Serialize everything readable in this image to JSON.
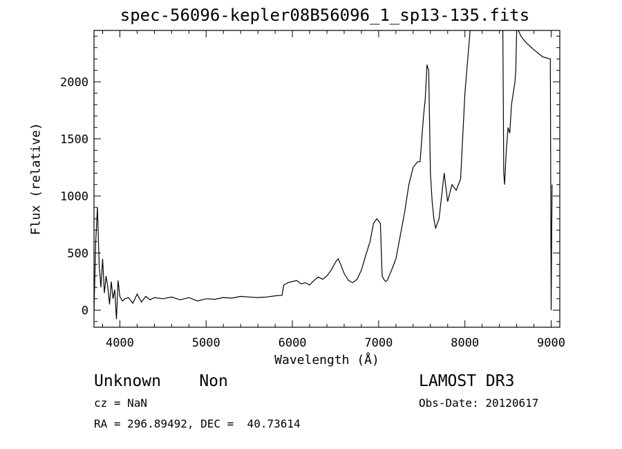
{
  "chart_data": {
    "type": "line",
    "title": "spec-56096-kepler08B56096_1_sp13-135.fits",
    "xlabel": "Wavelength (Å)",
    "ylabel": "Flux (relative)",
    "xlim": [
      3700,
      9100
    ],
    "ylim": [
      -150,
      2450
    ],
    "xticks": [
      4000,
      5000,
      6000,
      7000,
      8000,
      9000
    ],
    "yticks": [
      0,
      500,
      1000,
      1500,
      2000
    ],
    "grid": false,
    "series": [
      {
        "x": [
          3700,
          3720,
          3740,
          3760,
          3780,
          3800,
          3820,
          3840,
          3860,
          3880,
          3900,
          3920,
          3940,
          3960,
          3980,
          4000,
          4030,
          4060,
          4100,
          4150,
          4200,
          4250,
          4300,
          4350,
          4400,
          4500,
          4600,
          4700,
          4800,
          4900,
          5000,
          5100,
          5200,
          5300,
          5400,
          5500,
          5600,
          5700,
          5800,
          5880,
          5900,
          5950,
          6000,
          6050,
          6100,
          6150,
          6200,
          6250,
          6300,
          6350,
          6400,
          6450,
          6500,
          6530,
          6560,
          6600,
          6650,
          6700,
          6750,
          6800,
          6850,
          6900,
          6940,
          6980,
          7000,
          7020,
          7040,
          7060,
          7080,
          7100,
          7120,
          7150,
          7200,
          7250,
          7300,
          7350,
          7400,
          7450,
          7480,
          7500,
          7520,
          7540,
          7560,
          7580,
          7600,
          7620,
          7640,
          7660,
          7700,
          7730,
          7760,
          7800,
          7850,
          7900,
          7950,
          8000,
          8050,
          8060,
          8200,
          8250,
          8300,
          8350,
          8400,
          8440,
          8450,
          8460,
          8480,
          8500,
          8520,
          8540,
          8560,
          8580,
          8590,
          8600,
          8620,
          8650,
          8700,
          8800,
          8900,
          8990,
          9000,
          9010
        ],
        "values": [
          0,
          600,
          900,
          400,
          200,
          450,
          150,
          300,
          200,
          50,
          250,
          100,
          180,
          -80,
          260,
          120,
          80,
          100,
          110,
          60,
          140,
          70,
          120,
          90,
          110,
          100,
          115,
          90,
          110,
          80,
          100,
          95,
          110,
          105,
          120,
          115,
          110,
          115,
          125,
          130,
          220,
          240,
          250,
          260,
          230,
          240,
          220,
          260,
          290,
          270,
          300,
          350,
          420,
          450,
          400,
          320,
          260,
          240,
          270,
          350,
          480,
          600,
          760,
          800,
          780,
          760,
          300,
          270,
          250,
          260,
          300,
          350,
          450,
          650,
          850,
          1100,
          1250,
          1300,
          1300,
          1500,
          1700,
          1850,
          2150,
          2100,
          1200,
          950,
          800,
          720,
          800,
          1000,
          1200,
          950,
          1100,
          1050,
          1150,
          1900,
          2350,
          2450,
          2450,
          2450,
          2450,
          2450,
          2450,
          2450,
          1200,
          1100,
          1400,
          1600,
          1550,
          1800,
          1900,
          2000,
          2100,
          2450,
          2450,
          2400,
          2350,
          2280,
          2220,
          2200,
          0,
          1100
        ]
      }
    ]
  },
  "info": {
    "object": "Unknown    Non",
    "survey": "LAMOST DR3",
    "cz": "cz = NaN",
    "obs_date": "Obs-Date: 20120617",
    "coords": "RA = 296.89492, DEC =  40.73614"
  }
}
